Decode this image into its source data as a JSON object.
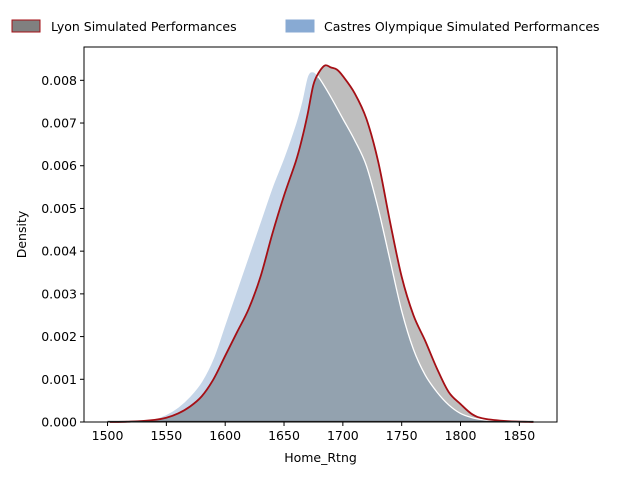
{
  "chart_data": {
    "type": "area",
    "xlabel": "Home_Rtng",
    "ylabel": "Density",
    "xlim": [
      1480,
      1882
    ],
    "ylim": [
      0,
      0.00878
    ],
    "x_ticks": [
      "1500",
      "1550",
      "1600",
      "1650",
      "1700",
      "1750",
      "1800",
      "1850"
    ],
    "y_ticks": [
      "0.000",
      "0.001",
      "0.002",
      "0.003",
      "0.004",
      "0.005",
      "0.006",
      "0.007",
      "0.008"
    ],
    "grid": false,
    "legend_position": "top",
    "legend": [
      "Lyon Simulated Performances",
      "Castres Olympique Simulated Performances"
    ],
    "series": [
      {
        "name": "Lyon Simulated Performances",
        "fill_color": "#bebebe",
        "line_color": "#a50f15",
        "legend_fill": "#808080",
        "legend_edge": "#a50f15",
        "points": [
          [
            1502,
            0.0
          ],
          [
            1520,
            1e-05
          ],
          [
            1540,
            5e-05
          ],
          [
            1550,
            0.0001
          ],
          [
            1560,
            0.0002
          ],
          [
            1570,
            0.00036
          ],
          [
            1580,
            0.0006
          ],
          [
            1590,
            0.001
          ],
          [
            1600,
            0.00155
          ],
          [
            1610,
            0.0021
          ],
          [
            1620,
            0.00265
          ],
          [
            1630,
            0.0034
          ],
          [
            1640,
            0.0044
          ],
          [
            1650,
            0.0053
          ],
          [
            1660,
            0.0061
          ],
          [
            1665,
            0.0066
          ],
          [
            1670,
            0.0072
          ],
          [
            1675,
            0.0079
          ],
          [
            1680,
            0.0082
          ],
          [
            1685,
            0.00835
          ],
          [
            1690,
            0.0083
          ],
          [
            1695,
            0.00825
          ],
          [
            1700,
            0.0081
          ],
          [
            1710,
            0.0077
          ],
          [
            1720,
            0.0071
          ],
          [
            1730,
            0.0061
          ],
          [
            1740,
            0.0047
          ],
          [
            1750,
            0.0034
          ],
          [
            1760,
            0.0025
          ],
          [
            1770,
            0.0019
          ],
          [
            1780,
            0.00125
          ],
          [
            1790,
            0.0007
          ],
          [
            1800,
            0.00042
          ],
          [
            1810,
            0.00018
          ],
          [
            1820,
            8e-05
          ],
          [
            1840,
            2e-05
          ],
          [
            1862,
            0.0
          ]
        ]
      },
      {
        "name": "Castres Olympique Simulated Performances",
        "fill_color": "#b5c9e2",
        "line_color": "#ffffff",
        "legend_fill": "#88aad3",
        "legend_edge": "#88aad3",
        "points": [
          [
            1500,
            0.0
          ],
          [
            1520,
            2e-05
          ],
          [
            1540,
            8e-05
          ],
          [
            1550,
            0.00018
          ],
          [
            1560,
            0.00035
          ],
          [
            1570,
            0.0006
          ],
          [
            1580,
            0.00095
          ],
          [
            1590,
            0.0015
          ],
          [
            1600,
            0.0023
          ],
          [
            1610,
            0.0031
          ],
          [
            1620,
            0.0039
          ],
          [
            1630,
            0.0047
          ],
          [
            1640,
            0.0055
          ],
          [
            1650,
            0.0062
          ],
          [
            1660,
            0.007
          ],
          [
            1665,
            0.0075
          ],
          [
            1670,
            0.0081
          ],
          [
            1675,
            0.0082
          ],
          [
            1680,
            0.00805
          ],
          [
            1690,
            0.0076
          ],
          [
            1700,
            0.0071
          ],
          [
            1710,
            0.0066
          ],
          [
            1720,
            0.006
          ],
          [
            1730,
            0.005
          ],
          [
            1740,
            0.0038
          ],
          [
            1750,
            0.0026
          ],
          [
            1760,
            0.0017
          ],
          [
            1770,
            0.0011
          ],
          [
            1780,
            0.0007
          ],
          [
            1790,
            0.0004
          ],
          [
            1800,
            0.0002
          ],
          [
            1810,
            0.0001
          ],
          [
            1820,
            5e-05
          ],
          [
            1830,
            2e-05
          ],
          [
            1845,
            0.0
          ]
        ]
      }
    ]
  }
}
